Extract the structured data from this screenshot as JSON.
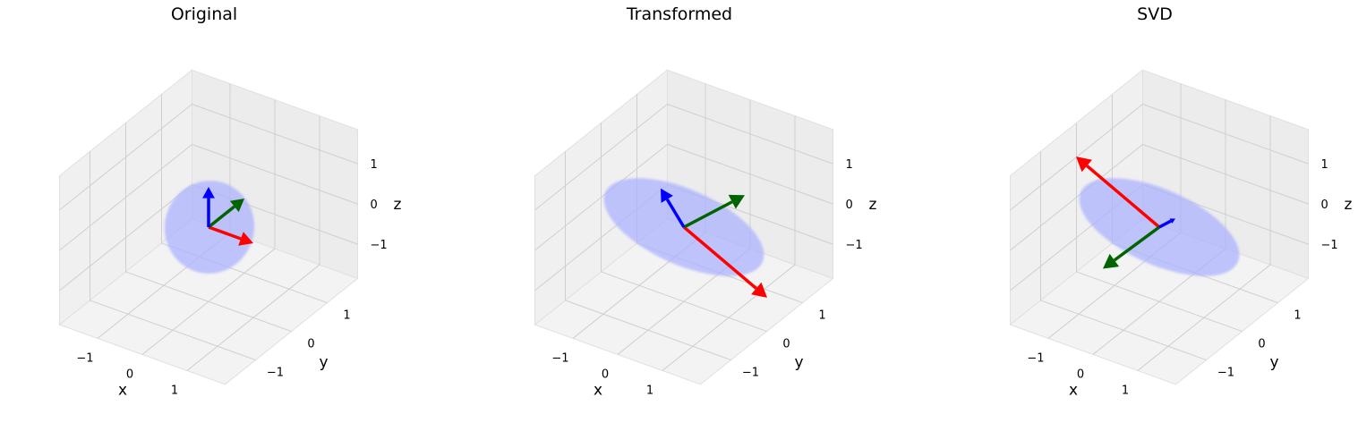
{
  "chart_data": [
    {
      "type": "3d-vectors",
      "title": "Original",
      "xlabel": "x",
      "ylabel": "y",
      "zlabel": "z",
      "xticks": [
        "−1",
        "0",
        "1"
      ],
      "yticks": [
        "−1",
        "0",
        "1"
      ],
      "zticks": [
        "−1",
        "0",
        "1"
      ],
      "ellipsoid": {
        "color": "#aab0ff",
        "shape": "sphere"
      },
      "vectors": [
        {
          "color": "#ff0000",
          "end": [
            1,
            0,
            0
          ]
        },
        {
          "color": "#006400",
          "end": [
            0,
            1,
            0
          ]
        },
        {
          "color": "#0000ff",
          "end": [
            0,
            0,
            1
          ]
        }
      ]
    },
    {
      "type": "3d-vectors",
      "title": "Transformed",
      "xlabel": "x",
      "ylabel": "y",
      "zlabel": "z",
      "xticks": [
        "−1",
        "0",
        "1"
      ],
      "yticks": [
        "−1",
        "0",
        "1"
      ],
      "zticks": [
        "−1",
        "0",
        "1"
      ],
      "ellipsoid": {
        "color": "#aab0ff",
        "shape": "ellipsoid"
      },
      "vectors": [
        {
          "color": "#ff0000",
          "end": [
            2.1,
            -0.3,
            -0.7
          ]
        },
        {
          "color": "#006400",
          "end": [
            0.4,
            1.2,
            0.1
          ]
        },
        {
          "color": "#0000ff",
          "end": [
            -0.6,
            0.1,
            0.65
          ]
        }
      ]
    },
    {
      "type": "3d-vectors",
      "title": "SVD",
      "xlabel": "x",
      "ylabel": "y",
      "zlabel": "z",
      "xticks": [
        "−1",
        "0",
        "1"
      ],
      "yticks": [
        "−1",
        "0",
        "1"
      ],
      "zticks": [
        "−1",
        "0",
        "1"
      ],
      "ellipsoid": {
        "color": "#aab0ff",
        "shape": "ellipsoid"
      },
      "vectors": [
        {
          "color": "#ff0000",
          "end": [
            -2.1,
            0.3,
            0.7
          ]
        },
        {
          "color": "#006400",
          "end": [
            -0.3,
            -1.2,
            -0.3
          ]
        },
        {
          "color": "#0000ff",
          "end": [
            0.2,
            0.2,
            0.15
          ]
        }
      ]
    }
  ]
}
